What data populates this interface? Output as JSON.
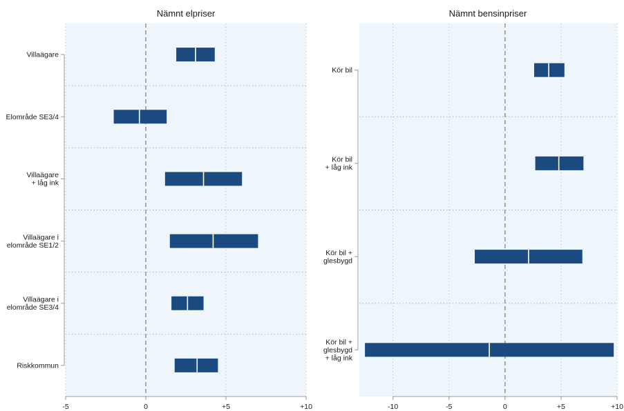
{
  "chart_data": [
    {
      "type": "bar",
      "subtype": "range (interval) bars with point marker",
      "title": "Nämnt elpriser",
      "xlabel": "",
      "ylabel": "",
      "xlim": [
        -5,
        10
      ],
      "xticks": [
        "-5",
        "0",
        "+5",
        "+10"
      ],
      "xtick_values": [
        -5,
        0,
        5,
        10
      ],
      "reference_line": 0,
      "grid": true,
      "categories": [
        [
          "Villaägare"
        ],
        [
          "Elområde SE3/4"
        ],
        [
          "Villaägare",
          "+ låg ink"
        ],
        [
          "Villaägare i",
          "elområde SE1/2"
        ],
        [
          "Villaägare i",
          "elområde SE3/4"
        ],
        [
          "Riskkommun"
        ]
      ],
      "low": [
        1.9,
        -2.0,
        1.2,
        1.5,
        1.6,
        1.8
      ],
      "point": [
        3.1,
        -0.4,
        3.6,
        4.2,
        2.6,
        3.2
      ],
      "high": [
        4.3,
        1.3,
        6.0,
        7.0,
        3.6,
        4.5
      ],
      "color": "#1b4a80"
    },
    {
      "type": "bar",
      "subtype": "range (interval) bars with point marker",
      "title": "Nämnt bensinpriser",
      "xlabel": "",
      "ylabel": "",
      "xlim": [
        -13,
        10
      ],
      "xticks": [
        "-10",
        "-5",
        "0",
        "+5",
        "+10"
      ],
      "xtick_values": [
        -10,
        -5,
        0,
        5,
        10
      ],
      "reference_line": 0,
      "grid": true,
      "categories": [
        [
          "Kör bil"
        ],
        [
          "Kör bil",
          "+ låg ink"
        ],
        [
          "Kör bil +",
          "glesbygd"
        ],
        [
          "Kör bil +",
          "glesbygd",
          "+ låg ink"
        ]
      ],
      "low": [
        2.6,
        2.7,
        -2.7,
        -12.5
      ],
      "point": [
        3.9,
        4.8,
        2.1,
        -1.4
      ],
      "high": [
        5.3,
        7.0,
        6.9,
        9.7
      ],
      "color": "#1b4a80"
    }
  ]
}
